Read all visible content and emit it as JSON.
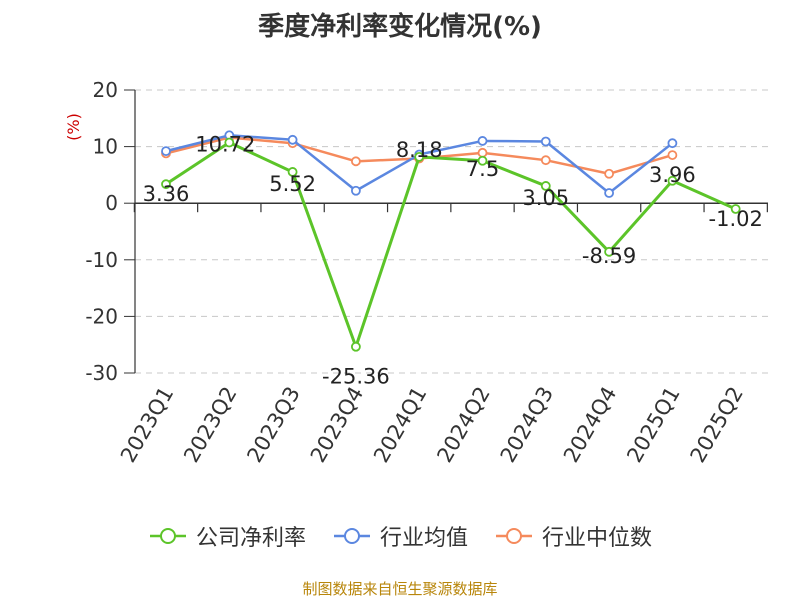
{
  "chart_data": {
    "type": "line",
    "title": "季度净利率变化情况(%)",
    "ylabel": "(%)",
    "categories": [
      "2023Q1",
      "2023Q2",
      "2023Q3",
      "2023Q4",
      "2024Q1",
      "2024Q2",
      "2024Q3",
      "2024Q4",
      "2025Q1",
      "2025Q2"
    ],
    "ylim": [
      -30,
      20
    ],
    "yticks": [
      20,
      10,
      0,
      -10,
      -20,
      -30
    ],
    "grid": true,
    "legend": "bottom",
    "series": [
      {
        "name": "公司净利率",
        "color": "#5cc429",
        "values": [
          3.36,
          10.72,
          5.52,
          -25.36,
          8.18,
          7.5,
          3.05,
          -8.59,
          3.96,
          -1.02
        ],
        "labels": [
          "3.36",
          "10.72",
          "5.52",
          "-25.36",
          "8.18",
          "7.5",
          "3.05",
          "-8.59",
          "3.96",
          "-1.02"
        ]
      },
      {
        "name": "行业均值",
        "color": "#5b87e0",
        "values": [
          9.2,
          12.0,
          11.2,
          2.2,
          8.6,
          11.0,
          10.9,
          1.8,
          10.6,
          null
        ]
      },
      {
        "name": "行业中位数",
        "color": "#f58a5c",
        "values": [
          8.8,
          11.6,
          10.6,
          7.4,
          7.9,
          8.9,
          7.6,
          5.2,
          8.5,
          null
        ]
      }
    ]
  },
  "source": "制图数据来自恒生聚源数据库"
}
